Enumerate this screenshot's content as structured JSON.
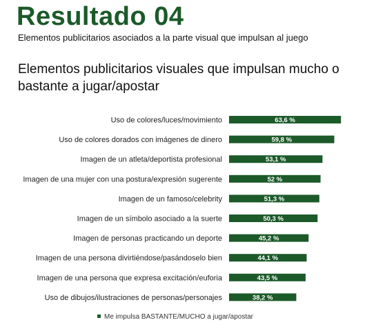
{
  "header": {
    "title": "Resultado 04",
    "subtitle": "Elementos publicitarios asociados a la parte visual que impulsan al juego"
  },
  "colors": {
    "accent": "#1c5a2a",
    "bar": "#1c5a2a",
    "bar_label": "#ffffff"
  },
  "chart_data": {
    "type": "bar",
    "orientation": "horizontal",
    "title": "Elementos publicitarios visuales que impulsan mucho o bastante a jugar/apostar",
    "categories": [
      "Uso de colores/luces/movimiento",
      "Uso de colores dorados con imágenes de dinero",
      "Imagen de un atleta/deportista profesional",
      "Imagen de una mujer con una postura/expresión sugerente",
      "Imagen de un famoso/celebrity",
      "Imagen de un símbolo asociado a la suerte",
      "Imagen de personas practicando un deporte",
      "Imagen de una persona divirtiéndose/pasándoselo bien",
      "Imagen de una persona que expresa excitación/euforia",
      "Uso de dibujos/ilustraciones de personas/personajes"
    ],
    "series": [
      {
        "name": "Me impulsa BASTANTE/MUCHO  a jugar/apostar",
        "values": [
          63.6,
          59.8,
          53.1,
          52,
          51.3,
          50.3,
          45.2,
          44.1,
          43.5,
          38.2
        ],
        "labels": [
          "63,6 %",
          "59,8 %",
          "53,1 %",
          "52 %",
          "51,3 %",
          "50,3 %",
          "45,2 %",
          "44,1 %",
          "43,5 %",
          "38,2 %"
        ]
      }
    ],
    "xlim": [
      0,
      100
    ],
    "grid": false,
    "legend_position": "bottom"
  }
}
